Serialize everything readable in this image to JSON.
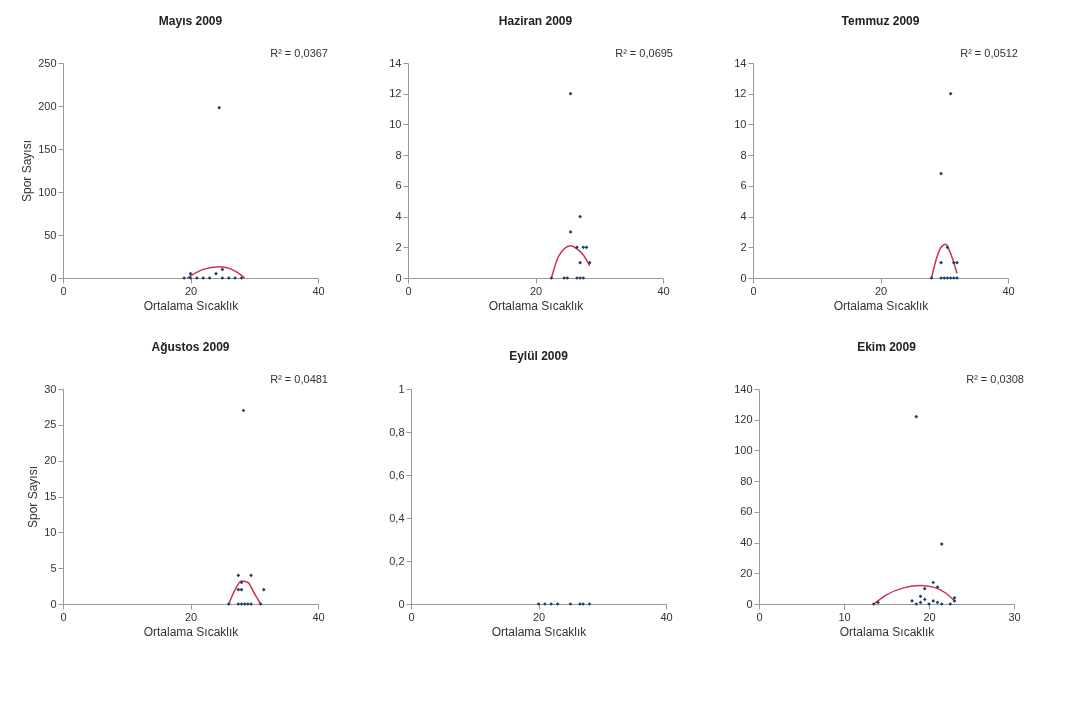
{
  "chart_data": [
    {
      "type": "scatter",
      "title": "Mayıs 2009",
      "xlabel": "Ortalama Sıcaklık",
      "ylabel": "Spor Sayısı",
      "annotations": [
        "R² = 0,0367"
      ],
      "xlim": [
        0,
        40
      ],
      "xticks": [
        0,
        20,
        40
      ],
      "ylim": [
        0,
        250
      ],
      "yticks": [
        0,
        50,
        100,
        150,
        200,
        250
      ],
      "grid": false,
      "marker": "diamond",
      "series": [
        {
          "color": "#1f3f6e",
          "x": [
            24.5,
            20,
            19,
            20,
            21,
            22,
            23,
            24,
            25,
            25,
            26,
            27,
            28
          ],
          "values": [
            198,
            5,
            0,
            0,
            0,
            0,
            0,
            5,
            10,
            0,
            0,
            0,
            0
          ]
        },
        {
          "type": "line",
          "marker": "none",
          "color": "#d0314b",
          "x": [
            19.5,
            22,
            24.5,
            27,
            28.5
          ],
          "values": [
            0,
            10,
            13,
            8,
            0
          ]
        }
      ]
    },
    {
      "type": "scatter",
      "title": "Haziran 2009",
      "xlabel": "Ortalama Sıcaklık",
      "annotations": [
        "R² = 0,0695"
      ],
      "xlim": [
        0,
        40
      ],
      "xticks": [
        0,
        20,
        40
      ],
      "ylim": [
        0,
        14
      ],
      "yticks": [
        0,
        2,
        4,
        6,
        8,
        10,
        12,
        14
      ],
      "grid": false,
      "marker": "diamond",
      "series": [
        {
          "color": "#1f3f6e",
          "x": [
            25.5,
            25.5,
            27,
            26.5,
            27.5,
            28,
            27,
            28.5,
            22.5,
            24.5,
            25,
            26.5,
            27,
            27.5
          ],
          "values": [
            12,
            3,
            4,
            2,
            2,
            2,
            1,
            1,
            0,
            0,
            0,
            0,
            0,
            0
          ]
        },
        {
          "type": "line",
          "marker": "none",
          "color": "#d0314b",
          "x": [
            22.5,
            23.5,
            24.5,
            25.5,
            26.5,
            27.5,
            28.5
          ],
          "values": [
            0,
            1.3,
            1.9,
            2.1,
            1.9,
            1.5,
            0.8
          ]
        }
      ]
    },
    {
      "type": "scatter",
      "title": "Temmuz 2009",
      "xlabel": "Ortalama Sıcaklık",
      "annotations": [
        "R² = 0,0512"
      ],
      "xlim": [
        0,
        40
      ],
      "xticks": [
        0,
        20,
        40
      ],
      "ylim": [
        0,
        14
      ],
      "yticks": [
        0,
        2,
        4,
        6,
        8,
        10,
        12,
        14
      ],
      "grid": false,
      "marker": "diamond",
      "series": [
        {
          "color": "#1f3f6e",
          "x": [
            31,
            29.5,
            30.5,
            29.5,
            31.5,
            32,
            28,
            29.5,
            30,
            30.5,
            31,
            31.5,
            32
          ],
          "values": [
            12,
            6.8,
            2,
            1,
            1,
            1,
            0,
            0,
            0,
            0,
            0,
            0,
            0
          ]
        },
        {
          "type": "line",
          "marker": "none",
          "color": "#d0314b",
          "x": [
            28,
            28.8,
            29.5,
            30.2,
            30.8,
            31.5,
            32
          ],
          "values": [
            0,
            1.3,
            2,
            2.2,
            1.8,
            1,
            0.3
          ]
        }
      ]
    },
    {
      "type": "scatter",
      "title": "Ağustos 2009",
      "xlabel": "Ortalama Sıcaklık",
      "ylabel": "Spor Sayısı",
      "annotations": [
        "R² = 0,0481"
      ],
      "xlim": [
        0,
        40
      ],
      "xticks": [
        0,
        20,
        40
      ],
      "ylim": [
        0,
        30
      ],
      "yticks": [
        0,
        5,
        10,
        15,
        20,
        25,
        30
      ],
      "grid": false,
      "marker": "diamond",
      "series": [
        {
          "color": "#1f3f6e",
          "x": [
            28.3,
            27.5,
            29.5,
            28,
            27.5,
            28,
            31.5,
            26,
            27.5,
            28,
            28.5,
            29,
            29.5,
            31
          ],
          "values": [
            27,
            4,
            4,
            3,
            2,
            2,
            2,
            0,
            0,
            0,
            0,
            0,
            0,
            0
          ]
        },
        {
          "type": "line",
          "marker": "none",
          "color": "#d0314b",
          "x": [
            26,
            27,
            28,
            29,
            30,
            31
          ],
          "values": [
            0,
            2,
            3.2,
            3,
            1.5,
            0
          ]
        }
      ]
    },
    {
      "type": "scatter",
      "title": "Eylül 2009",
      "xlabel": "Ortalama Sıcaklık",
      "xlim": [
        0,
        40
      ],
      "xticks": [
        0,
        20,
        40
      ],
      "ylim": [
        0,
        1
      ],
      "yticks": [
        0,
        {
          "value": 0.2,
          "label": "0,2"
        },
        {
          "value": 0.4,
          "label": "0,4"
        },
        {
          "value": 0.6,
          "label": "0,6"
        },
        {
          "value": 0.8,
          "label": "0,8"
        },
        1
      ],
      "grid": false,
      "marker": "diamond",
      "series": [
        {
          "color": "#1f3f6e",
          "x": [
            20,
            21,
            22,
            23,
            25,
            26.5,
            27,
            28
          ],
          "values": [
            0,
            0,
            0,
            0,
            0,
            0,
            0,
            0
          ]
        }
      ]
    },
    {
      "type": "scatter",
      "title": "Ekim 2009",
      "xlabel": "Ortalama Sıcaklık",
      "annotations": [
        "R² = 0,0308"
      ],
      "xlim": [
        0,
        30
      ],
      "xticks": [
        0,
        10,
        20,
        30
      ],
      "ylim": [
        0,
        140
      ],
      "yticks": [
        0,
        20,
        40,
        60,
        80,
        100,
        120,
        140
      ],
      "grid": false,
      "marker": "diamond",
      "series": [
        {
          "color": "#1f3f6e",
          "x": [
            18.5,
            21.5,
            20.5,
            21,
            19.5,
            23,
            19,
            13.5,
            14,
            18,
            18.5,
            19,
            19.5,
            20,
            20.5,
            21,
            21.5,
            22.5,
            23
          ],
          "values": [
            122,
            39,
            14,
            11,
            10,
            4,
            5,
            0,
            1,
            2,
            0,
            1,
            3,
            0,
            2,
            1,
            0,
            0,
            2
          ]
        },
        {
          "type": "line",
          "marker": "none",
          "color": "#d0314b",
          "x": [
            13.5,
            15,
            17,
            19,
            20.5,
            22,
            23
          ],
          "values": [
            0,
            6,
            10.5,
            12,
            11,
            7,
            2
          ]
        }
      ]
    }
  ]
}
